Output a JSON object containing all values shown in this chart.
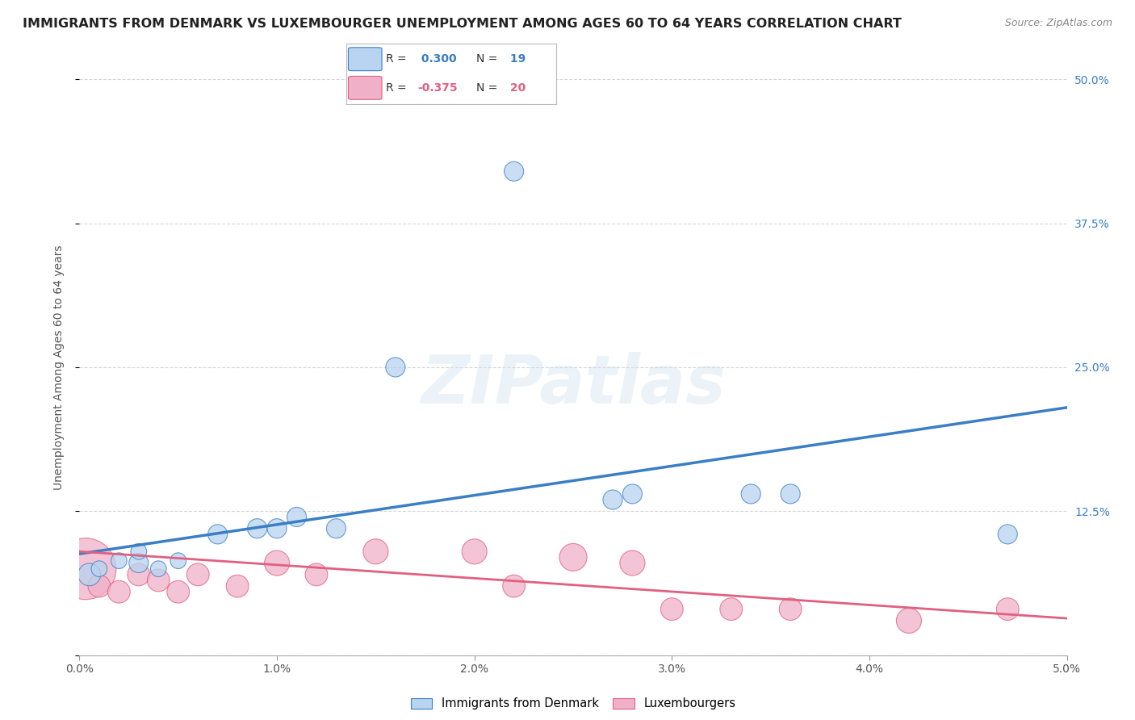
{
  "title": "IMMIGRANTS FROM DENMARK VS LUXEMBOURGER UNEMPLOYMENT AMONG AGES 60 TO 64 YEARS CORRELATION CHART",
  "source": "Source: ZipAtlas.com",
  "ylabel": "Unemployment Among Ages 60 to 64 years",
  "xlim": [
    0.0,
    0.05
  ],
  "ylim": [
    0.0,
    0.5
  ],
  "xticks": [
    0.0,
    0.01,
    0.02,
    0.03,
    0.04,
    0.05
  ],
  "xticklabels": [
    "0.0%",
    "1.0%",
    "2.0%",
    "3.0%",
    "4.0%",
    "5.0%"
  ],
  "yticks": [
    0.0,
    0.125,
    0.25,
    0.375,
    0.5
  ],
  "yticklabels": [
    "",
    "12.5%",
    "25.0%",
    "37.5%",
    "50.0%"
  ],
  "blue_R": 0.3,
  "blue_N": 19,
  "pink_R": -0.375,
  "pink_N": 20,
  "legend_label_blue": "Immigrants from Denmark",
  "legend_label_pink": "Luxembourgers",
  "blue_scatter": {
    "x": [
      0.0005,
      0.001,
      0.002,
      0.003,
      0.003,
      0.004,
      0.005,
      0.007,
      0.009,
      0.01,
      0.011,
      0.013,
      0.016,
      0.022,
      0.027,
      0.028,
      0.034,
      0.036,
      0.047
    ],
    "y": [
      0.07,
      0.075,
      0.082,
      0.08,
      0.09,
      0.075,
      0.082,
      0.105,
      0.11,
      0.11,
      0.12,
      0.11,
      0.25,
      0.42,
      0.135,
      0.14,
      0.14,
      0.14,
      0.105
    ],
    "sizes": [
      400,
      200,
      200,
      300,
      200,
      200,
      200,
      300,
      300,
      300,
      300,
      300,
      300,
      300,
      300,
      300,
      300,
      300,
      300
    ]
  },
  "pink_scatter": {
    "x": [
      0.0003,
      0.001,
      0.002,
      0.003,
      0.004,
      0.005,
      0.006,
      0.008,
      0.01,
      0.012,
      0.015,
      0.02,
      0.022,
      0.025,
      0.028,
      0.03,
      0.033,
      0.036,
      0.042,
      0.047
    ],
    "y": [
      0.075,
      0.06,
      0.055,
      0.07,
      0.065,
      0.055,
      0.07,
      0.06,
      0.08,
      0.07,
      0.09,
      0.09,
      0.06,
      0.085,
      0.08,
      0.04,
      0.04,
      0.04,
      0.03,
      0.04
    ],
    "sizes": [
      3000,
      400,
      400,
      400,
      400,
      400,
      400,
      400,
      500,
      400,
      500,
      500,
      400,
      600,
      500,
      400,
      400,
      400,
      500,
      400
    ]
  },
  "blue_line_color": "#3a7ec4",
  "pink_line_color": "#e06080",
  "blue_scatter_facecolor": "#b8d4f0",
  "pink_scatter_facecolor": "#f0b0c8",
  "background_color": "#ffffff",
  "grid_color": "#cccccc",
  "title_fontsize": 11.5,
  "source_fontsize": 9,
  "axis_label_fontsize": 10,
  "tick_fontsize": 10,
  "right_tick_color": "#3a7ec4",
  "watermark_text": "ZIPatlas",
  "blue_line_y0": 0.088,
  "blue_line_y1": 0.215,
  "pink_line_y0": 0.09,
  "pink_line_y1": 0.032
}
